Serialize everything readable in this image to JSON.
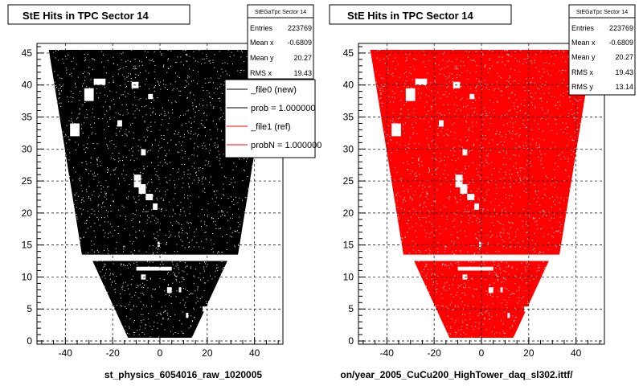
{
  "colors": {
    "left_series": "#000000",
    "right_series": "#ff0000",
    "frame": "#000000",
    "grid": "#000000"
  },
  "chart_data": [
    {
      "type": "scatter",
      "title": "StE Hits in TPC Sector 14",
      "xlabel": "st_physics_6054016_raw_1020005",
      "ylabel": "",
      "xlim": [
        -52,
        52
      ],
      "ylim": [
        -0.5,
        46.5
      ],
      "xticks": [
        -40,
        -20,
        0,
        20,
        40
      ],
      "yticks": [
        0,
        5,
        10,
        15,
        20,
        25,
        30,
        35,
        40,
        45
      ],
      "xtick_labels": [
        "-40",
        "-20",
        "0",
        "20",
        "40"
      ],
      "ytick_labels": [
        "0",
        "5",
        "10",
        "15",
        "20",
        "25",
        "30",
        "35",
        "40",
        "45"
      ],
      "grid": true,
      "marker_color": "#000000",
      "stats": {
        "name": "StEGaTpc Sector 14",
        "rows": [
          {
            "label": "Entries",
            "value": "223769"
          },
          {
            "label": "Mean x",
            "value": "-0.6809"
          },
          {
            "label": "Mean y",
            "value": "20.27"
          },
          {
            "label": "RMS x",
            "value": "19.43"
          }
        ]
      },
      "legend": {
        "position": "top-right",
        "entries": [
          {
            "label": "_file0 (new)",
            "color": "#000000"
          },
          {
            "label": "prob = 1.000000",
            "color": "#000000"
          },
          {
            "label": "_file1 (ref)",
            "color": "#ff0000"
          },
          {
            "label": "probN = 1.000000",
            "color": "#ff0000"
          }
        ]
      }
    },
    {
      "type": "scatter",
      "title": "StE Hits in TPC Sector 14",
      "xlabel": "on/year_2005_CuCu200_HighTower_daq_sl302.ittf/",
      "ylabel": "",
      "xlim": [
        -52,
        52
      ],
      "ylim": [
        -0.5,
        46.5
      ],
      "xticks": [
        -40,
        -20,
        0,
        20,
        40
      ],
      "yticks": [
        0,
        5,
        10,
        15,
        20,
        25,
        30,
        35,
        40,
        45
      ],
      "xtick_labels": [
        "-40",
        "-20",
        "0",
        "20",
        "40"
      ],
      "ytick_labels": [
        "0",
        "5",
        "10",
        "15",
        "20",
        "25",
        "30",
        "35",
        "40",
        "45"
      ],
      "grid": true,
      "marker_color": "#ff0000",
      "stats": {
        "name": "StEGaTpc Sector 14",
        "rows": [
          {
            "label": "Entries",
            "value": "223769"
          },
          {
            "label": "Mean x",
            "value": "-0.6809"
          },
          {
            "label": "Mean y",
            "value": "20.27"
          },
          {
            "label": "RMS x",
            "value": "19.43"
          },
          {
            "label": "RMS y",
            "value": "13.14"
          }
        ]
      }
    }
  ],
  "sector_shape": {
    "outer_region": {
      "y_range": [
        13.5,
        45.5
      ],
      "x_half_width_at_y_bottom": 33,
      "x_half_width_at_y_top": 47
    },
    "inner_region": {
      "y_range": [
        0.5,
        12.5
      ],
      "x_half_width_at_y_bottom": 13.5,
      "x_half_width_at_y_top": 28.5
    },
    "holes": [
      {
        "x": [
          -32,
          -28
        ],
        "y": [
          37.5,
          39.5
        ]
      },
      {
        "x": [
          -38,
          -34
        ],
        "y": [
          32,
          34
        ]
      },
      {
        "x": [
          -28,
          -23
        ],
        "y": [
          40,
          41
        ]
      },
      {
        "x": [
          -18,
          -16
        ],
        "y": [
          33.5,
          34.5
        ]
      },
      {
        "x": [
          -12,
          -9
        ],
        "y": [
          39.5,
          40.5
        ]
      },
      {
        "x": [
          -5,
          -3
        ],
        "y": [
          37.8,
          38.6
        ]
      },
      {
        "x": [
          -11,
          -8
        ],
        "y": [
          24,
          26
        ]
      },
      {
        "x": [
          -9,
          -6
        ],
        "y": [
          23,
          24.5
        ]
      },
      {
        "x": [
          -6,
          -3
        ],
        "y": [
          22,
          23
        ]
      },
      {
        "x": [
          -3,
          -1
        ],
        "y": [
          20.5,
          21.5
        ]
      },
      {
        "x": [
          -8,
          -6
        ],
        "y": [
          29,
          30
        ]
      },
      {
        "x": [
          -1,
          0
        ],
        "y": [
          14.7,
          15.5
        ]
      },
      {
        "x": [
          -10,
          5
        ],
        "y": [
          11,
          11.6
        ]
      },
      {
        "x": [
          -8,
          -6
        ],
        "y": [
          9.6,
          10.4
        ]
      },
      {
        "x": [
          3,
          5
        ],
        "y": [
          7.5,
          8.4
        ]
      },
      {
        "x": [
          8,
          9
        ],
        "y": [
          7.6,
          8.4
        ]
      },
      {
        "x": [
          11,
          12
        ],
        "y": [
          3.6,
          4.4
        ]
      },
      {
        "x": [
          18,
          20
        ],
        "y": [
          4.6,
          5.4
        ]
      }
    ]
  }
}
